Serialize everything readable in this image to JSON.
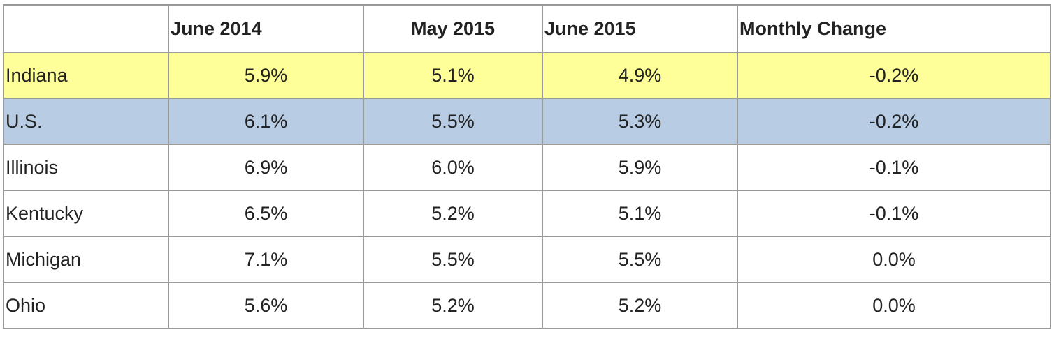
{
  "table": {
    "header": [
      "June 2014",
      "May 2015",
      "June 2015",
      "Monthly Change"
    ],
    "rows": [
      [
        "Indiana",
        "5.9%",
        "5.1%",
        "4.9%",
        "-0.2%"
      ],
      [
        "U.S.",
        "6.1%",
        "5.5%",
        "5.3%",
        "-0.2%"
      ],
      [
        "Illinois",
        "6.9%",
        "6.0%",
        "5.9%",
        "-0.1%"
      ],
      [
        "Kentucky",
        "6.5%",
        "5.2%",
        "5.1%",
        "-0.1%"
      ],
      [
        "Michigan",
        "7.1%",
        "5.5%",
        "5.5%",
        "0.0%"
      ],
      [
        "Ohio",
        "5.6%",
        "5.2%",
        "5.2%",
        "0.0%"
      ]
    ]
  }
}
